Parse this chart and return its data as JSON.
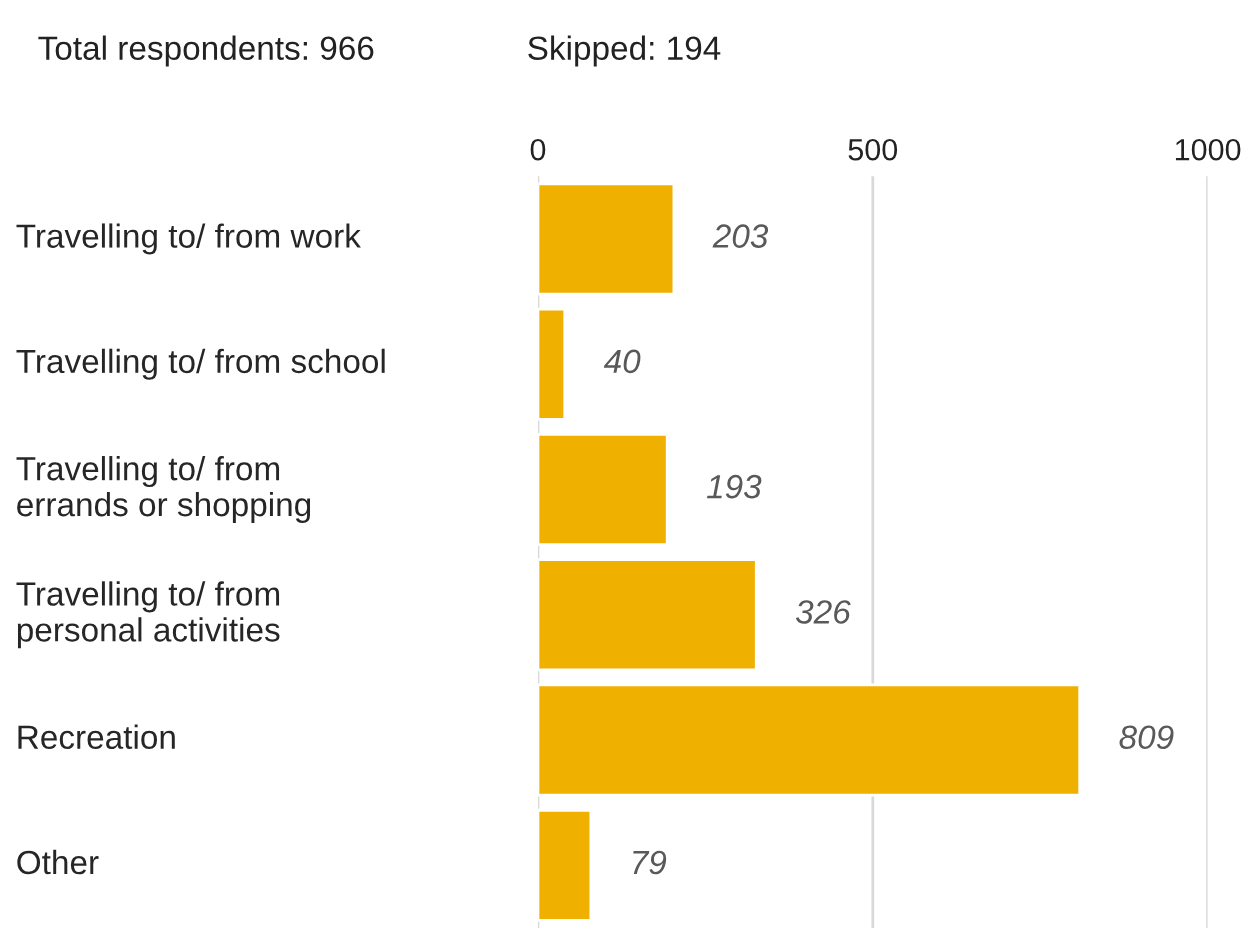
{
  "chart_data": {
    "type": "bar",
    "orientation": "horizontal",
    "categories": [
      "Travelling to/ from work",
      "Travelling to/ from school",
      "Travelling to/ from\nerrands or shopping",
      "Travelling to/ from\npersonal activities",
      "Recreation",
      "Other"
    ],
    "values": [
      203,
      40,
      193,
      326,
      809,
      79
    ],
    "color": "#f0b000",
    "xlim": [
      0,
      1000
    ],
    "xticks": [
      0,
      500,
      1000
    ],
    "grid": "x",
    "data_labels": true,
    "legend": false,
    "annotations": [
      "Total respondents: 966",
      "Skipped: 194"
    ]
  }
}
